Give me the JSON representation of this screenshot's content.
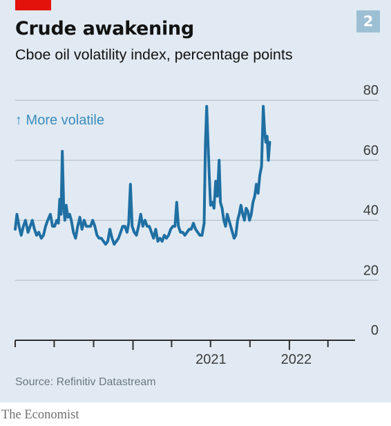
{
  "figure": {
    "badge": "2",
    "source": "Source: Refinitiv Datastream",
    "brand": "The Economist"
  },
  "chart_data": {
    "type": "line",
    "title": "Crude awakening",
    "subtitle": "Cboe oil volatility index, percentage points",
    "annotation": "↑ More volatile",
    "ylim": [
      0,
      80
    ],
    "yticks": [
      0,
      20,
      40,
      60,
      80
    ],
    "xlim": [
      "2020-04-01",
      "2022-05-15"
    ],
    "xtick_labels": [
      "2021",
      "2022"
    ],
    "grid": true,
    "line_color": "#1f6fa3",
    "series": [
      {
        "points": [
          [
            "2020-04-01",
            37
          ],
          [
            "2020-04-05",
            42
          ],
          [
            "2020-04-10",
            38
          ],
          [
            "2020-04-15",
            35
          ],
          [
            "2020-04-20",
            38
          ],
          [
            "2020-04-25",
            40
          ],
          [
            "2020-05-01",
            36
          ],
          [
            "2020-05-06",
            38
          ],
          [
            "2020-05-11",
            40
          ],
          [
            "2020-05-16",
            37
          ],
          [
            "2020-05-21",
            35
          ],
          [
            "2020-05-26",
            36
          ],
          [
            "2020-06-01",
            34
          ],
          [
            "2020-06-06",
            35
          ],
          [
            "2020-06-11",
            38
          ],
          [
            "2020-06-16",
            40
          ],
          [
            "2020-06-22",
            42
          ],
          [
            "2020-06-27",
            38
          ],
          [
            "2020-07-02",
            38
          ],
          [
            "2020-07-07",
            40
          ],
          [
            "2020-07-11",
            39
          ],
          [
            "2020-07-14",
            47
          ],
          [
            "2020-07-17",
            42
          ],
          [
            "2020-07-20",
            63
          ],
          [
            "2020-07-23",
            45
          ],
          [
            "2020-07-26",
            40
          ],
          [
            "2020-07-29",
            45
          ],
          [
            "2020-08-02",
            41
          ],
          [
            "2020-08-06",
            42
          ],
          [
            "2020-08-10",
            40
          ],
          [
            "2020-08-15",
            36
          ],
          [
            "2020-08-20",
            34
          ],
          [
            "2020-08-25",
            38
          ],
          [
            "2020-08-30",
            41
          ],
          [
            "2020-09-04",
            37
          ],
          [
            "2020-09-09",
            40
          ],
          [
            "2020-09-14",
            38
          ],
          [
            "2020-09-19",
            38
          ],
          [
            "2020-09-24",
            38
          ],
          [
            "2020-09-29",
            40
          ],
          [
            "2020-10-04",
            38
          ],
          [
            "2020-10-09",
            35
          ],
          [
            "2020-10-14",
            34
          ],
          [
            "2020-10-19",
            34
          ],
          [
            "2020-10-24",
            33
          ],
          [
            "2020-10-29",
            32
          ],
          [
            "2020-11-03",
            33
          ],
          [
            "2020-11-08",
            37
          ],
          [
            "2020-11-13",
            34
          ],
          [
            "2020-11-18",
            32
          ],
          [
            "2020-11-23",
            33
          ],
          [
            "2020-11-28",
            34
          ],
          [
            "2020-12-03",
            36
          ],
          [
            "2020-12-08",
            38
          ],
          [
            "2020-12-13",
            38
          ],
          [
            "2020-12-18",
            36
          ],
          [
            "2020-12-22",
            39
          ],
          [
            "2020-12-26",
            52
          ],
          [
            "2020-12-30",
            38
          ],
          [
            "2021-01-04",
            36
          ],
          [
            "2021-01-09",
            35
          ],
          [
            "2021-01-14",
            38
          ],
          [
            "2021-01-19",
            42
          ],
          [
            "2021-01-24",
            38
          ],
          [
            "2021-01-29",
            40
          ],
          [
            "2021-02-03",
            38
          ],
          [
            "2021-02-08",
            38
          ],
          [
            "2021-02-13",
            36
          ],
          [
            "2021-02-18",
            34
          ],
          [
            "2021-02-23",
            37
          ],
          [
            "2021-02-28",
            33
          ],
          [
            "2021-03-05",
            34
          ],
          [
            "2021-03-10",
            33
          ],
          [
            "2021-03-15",
            35
          ],
          [
            "2021-03-20",
            34
          ],
          [
            "2021-03-25",
            35
          ],
          [
            "2021-03-30",
            37
          ],
          [
            "2021-04-04",
            38
          ],
          [
            "2021-04-09",
            38
          ],
          [
            "2021-04-13",
            46
          ],
          [
            "2021-04-17",
            38
          ],
          [
            "2021-04-22",
            36
          ],
          [
            "2021-04-27",
            36
          ],
          [
            "2021-05-02",
            35
          ],
          [
            "2021-05-07",
            36
          ],
          [
            "2021-05-12",
            37
          ],
          [
            "2021-05-17",
            37
          ],
          [
            "2021-05-22",
            39
          ],
          [
            "2021-05-27",
            37
          ],
          [
            "2021-06-01",
            36
          ],
          [
            "2021-06-06",
            35
          ],
          [
            "2021-06-11",
            35
          ],
          [
            "2021-06-16",
            39
          ],
          [
            "2021-06-19",
            65
          ],
          [
            "2021-06-22",
            78
          ],
          [
            "2021-06-25",
            66
          ],
          [
            "2021-06-28",
            55
          ],
          [
            "2021-07-01",
            45
          ],
          [
            "2021-07-05",
            46
          ],
          [
            "2021-07-09",
            44
          ],
          [
            "2021-07-13",
            53
          ],
          [
            "2021-07-17",
            48
          ],
          [
            "2021-07-21",
            60
          ],
          [
            "2021-07-24",
            46
          ],
          [
            "2021-07-28",
            44
          ],
          [
            "2021-08-01",
            40
          ],
          [
            "2021-08-05",
            38
          ],
          [
            "2021-08-09",
            42
          ],
          [
            "2021-08-13",
            40
          ],
          [
            "2021-08-17",
            38
          ],
          [
            "2021-08-21",
            36
          ],
          [
            "2021-08-25",
            34
          ],
          [
            "2021-08-29",
            35
          ],
          [
            "2021-09-02",
            40
          ],
          [
            "2021-09-06",
            42
          ],
          [
            "2021-09-10",
            45
          ],
          [
            "2021-09-14",
            42
          ],
          [
            "2021-09-18",
            40
          ],
          [
            "2021-09-22",
            44
          ],
          [
            "2021-09-26",
            43
          ],
          [
            "2021-09-30",
            40
          ],
          [
            "2021-10-04",
            42
          ],
          [
            "2021-10-08",
            46
          ],
          [
            "2021-10-12",
            48
          ],
          [
            "2021-10-16",
            52
          ],
          [
            "2021-10-20",
            49
          ],
          [
            "2021-10-24",
            55
          ],
          [
            "2021-10-28",
            58
          ],
          [
            "2021-11-01",
            78
          ],
          [
            "2021-11-04",
            70
          ],
          [
            "2021-11-07",
            66
          ],
          [
            "2021-11-10",
            68
          ],
          [
            "2021-11-13",
            60
          ],
          [
            "2021-11-16",
            66
          ]
        ]
      }
    ]
  }
}
